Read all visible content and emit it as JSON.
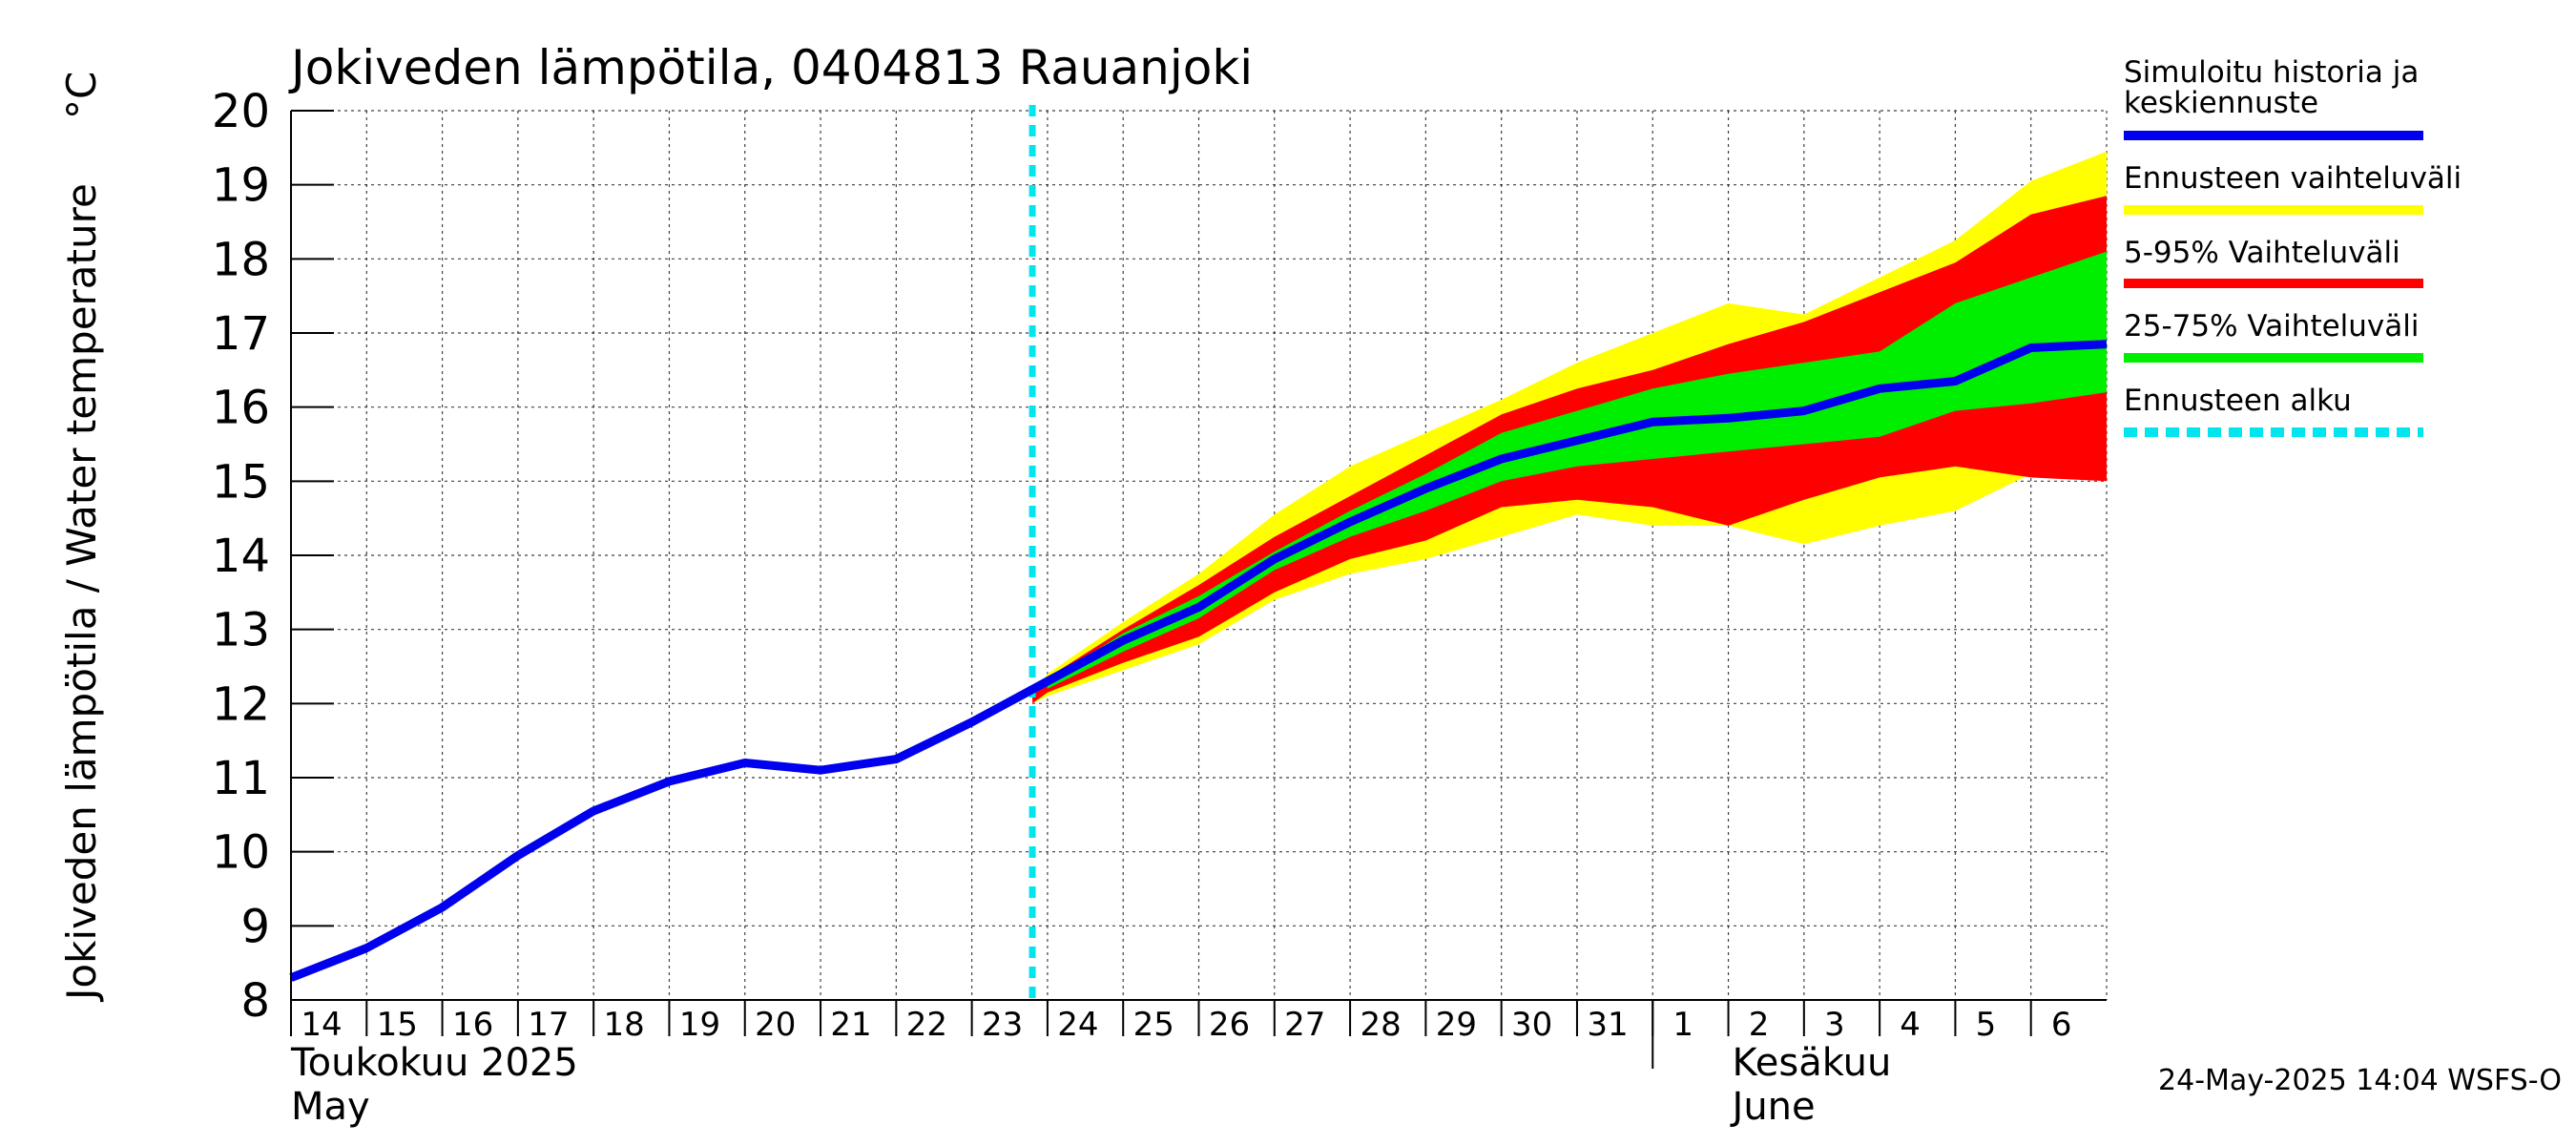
{
  "chart_data": {
    "type": "line",
    "title": "Jokiveden lämpötila, 0404813 Rauanjoki",
    "ylabel": "Jokiveden lämpötila / Water temperature",
    "yunit": "°C",
    "ylim": [
      8,
      20
    ],
    "yticks": [
      8,
      9,
      10,
      11,
      12,
      13,
      14,
      15,
      16,
      17,
      18,
      19,
      20
    ],
    "x_start_day": 14,
    "x_end_day": 38,
    "xticks": [
      {
        "day": 14,
        "label": "14"
      },
      {
        "day": 15,
        "label": "15"
      },
      {
        "day": 16,
        "label": "16"
      },
      {
        "day": 17,
        "label": "17"
      },
      {
        "day": 18,
        "label": "18"
      },
      {
        "day": 19,
        "label": "19"
      },
      {
        "day": 20,
        "label": "20"
      },
      {
        "day": 21,
        "label": "21"
      },
      {
        "day": 22,
        "label": "22"
      },
      {
        "day": 23,
        "label": "23"
      },
      {
        "day": 24,
        "label": "24"
      },
      {
        "day": 25,
        "label": "25"
      },
      {
        "day": 26,
        "label": "26"
      },
      {
        "day": 27,
        "label": "27"
      },
      {
        "day": 28,
        "label": "28"
      },
      {
        "day": 29,
        "label": "29"
      },
      {
        "day": 30,
        "label": "30"
      },
      {
        "day": 31,
        "label": "31"
      },
      {
        "day": 32,
        "label": "1"
      },
      {
        "day": 33,
        "label": "2"
      },
      {
        "day": 34,
        "label": "3"
      },
      {
        "day": 35,
        "label": "4"
      },
      {
        "day": 36,
        "label": "5"
      },
      {
        "day": 37,
        "label": "6"
      }
    ],
    "months": [
      {
        "day": 14,
        "fi": "Toukokuu  2025",
        "en": "May"
      },
      {
        "day": 32,
        "fi": "Kesäkuu",
        "en": "June"
      }
    ],
    "month_boundary_day": 32,
    "forecast_start_day": 23.8,
    "series": [
      {
        "name": "Simuloitu historia ja keskiennuste",
        "color": "#0000ee",
        "x": [
          14,
          15,
          16,
          17,
          18,
          19,
          20,
          21,
          22,
          23,
          24,
          25,
          26,
          27,
          28,
          29,
          30,
          31,
          32,
          33,
          34,
          35,
          36,
          37,
          38
        ],
        "values": [
          8.3,
          8.7,
          9.25,
          9.95,
          10.55,
          10.95,
          11.2,
          11.1,
          11.25,
          11.75,
          12.3,
          12.85,
          13.3,
          13.95,
          14.45,
          14.9,
          15.3,
          15.55,
          15.8,
          15.85,
          15.95,
          16.25,
          16.35,
          16.8,
          16.85
        ]
      }
    ],
    "bands": [
      {
        "name": "Ennusteen vaihteluväli",
        "color": "#ffff00",
        "x": [
          23.8,
          24,
          25,
          26,
          27,
          28,
          29,
          30,
          31,
          32,
          33,
          34,
          35,
          36,
          37,
          38
        ],
        "lower": [
          12.0,
          12.1,
          12.45,
          12.8,
          13.4,
          13.75,
          13.95,
          14.25,
          14.55,
          14.4,
          14.4,
          14.15,
          14.4,
          14.6,
          15.1,
          15.0
        ],
        "upper": [
          12.1,
          12.4,
          13.1,
          13.75,
          14.55,
          15.2,
          15.65,
          16.1,
          16.6,
          17.0,
          17.4,
          17.25,
          17.75,
          18.25,
          19.05,
          19.45
        ]
      },
      {
        "name": "5-95% Vaihteluväli",
        "color": "#ff0000",
        "x": [
          23.8,
          24,
          25,
          26,
          27,
          28,
          29,
          30,
          31,
          32,
          33,
          34,
          35,
          36,
          37,
          38
        ],
        "lower": [
          12.0,
          12.15,
          12.55,
          12.9,
          13.5,
          13.95,
          14.2,
          14.65,
          14.75,
          14.65,
          14.4,
          14.75,
          15.05,
          15.2,
          15.05,
          15.0
        ],
        "upper": [
          12.1,
          12.35,
          13.0,
          13.6,
          14.25,
          14.8,
          15.35,
          15.9,
          16.25,
          16.5,
          16.85,
          17.15,
          17.55,
          17.95,
          18.6,
          18.85
        ]
      },
      {
        "name": "25-75% Vaihteluväli",
        "color": "#00ee00",
        "x": [
          24,
          25,
          26,
          27,
          28,
          29,
          30,
          31,
          32,
          33,
          34,
          35,
          36,
          37,
          38
        ],
        "lower": [
          12.2,
          12.7,
          13.15,
          13.8,
          14.25,
          14.6,
          15.0,
          15.2,
          15.3,
          15.4,
          15.5,
          15.6,
          15.95,
          16.05,
          16.2
        ],
        "upper": [
          12.3,
          12.95,
          13.45,
          14.05,
          14.6,
          15.1,
          15.65,
          15.95,
          16.25,
          16.45,
          16.6,
          16.75,
          17.4,
          17.75,
          18.1
        ]
      }
    ],
    "legend": [
      {
        "label": "Simuloitu historia ja keskiennuste",
        "color": "#0000ee",
        "style": "solid"
      },
      {
        "label": "Ennusteen vaihteluväli",
        "color": "#ffff00",
        "style": "solid"
      },
      {
        "label": "5-95% Vaihteluväli",
        "color": "#ff0000",
        "style": "solid"
      },
      {
        "label": "25-75% Vaihteluväli",
        "color": "#00ee00",
        "style": "solid"
      },
      {
        "label": "Ennusteen alku",
        "color": "#00e5ee",
        "style": "dashed"
      }
    ],
    "footer": "24-May-2025 14:04 WSFS-O"
  }
}
